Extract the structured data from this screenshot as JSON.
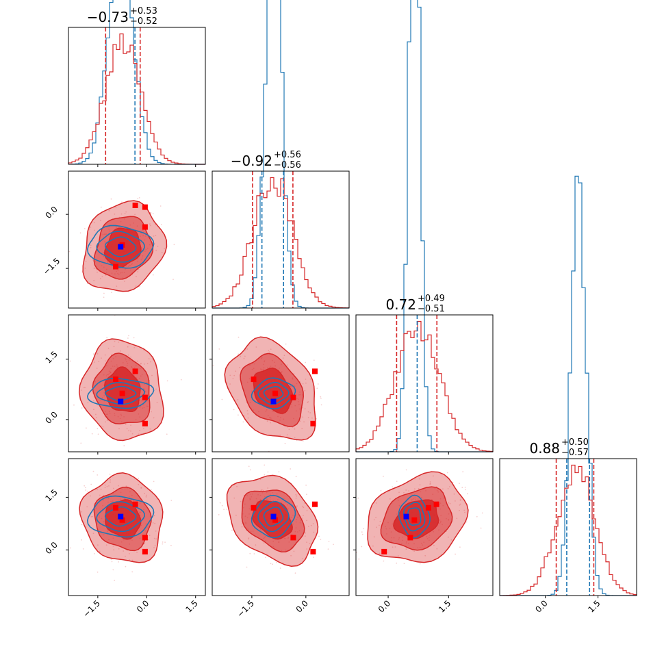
{
  "chart_data": {
    "type": "corner",
    "params": [
      {
        "title_value": "−0.73",
        "title_plus": "+0.53",
        "title_minus": "−0.52",
        "quantiles_red": [
          -1.26,
          -0.2
        ],
        "quantiles_blue": [
          -0.36
        ]
      },
      {
        "title_value": "−0.92",
        "title_plus": "+0.56",
        "title_minus": "−0.56",
        "quantiles_red": [
          -1.48,
          -0.36
        ],
        "quantiles_blue": [
          -1.22,
          -0.62
        ]
      },
      {
        "title_value": "0.72",
        "title_plus": "+0.49",
        "title_minus": "−0.51",
        "quantiles_red": [
          0.21,
          1.21
        ],
        "quantiles_blue": [
          0.72
        ]
      },
      {
        "title_value": "0.88",
        "title_plus": "+0.50",
        "title_minus": "−0.57",
        "quantiles_red": [
          0.31,
          1.38
        ],
        "quantiles_blue": [
          0.61,
          1.26
        ]
      }
    ],
    "axis_ranges": [
      [
        -2.4,
        1.8
      ],
      [
        -2.6,
        1.2
      ],
      [
        -0.8,
        2.6
      ],
      [
        -1.3,
        2.6
      ]
    ],
    "tick_values": [
      [
        "−1.5",
        "0.0",
        "1.5"
      ],
      [
        "−1.5",
        "0.0"
      ],
      [
        "0.0",
        "1.5"
      ],
      [
        "0.0",
        "1.5"
      ]
    ],
    "tick_numbers": [
      [
        -1.5,
        0.0,
        1.5
      ],
      [
        -1.5,
        0.0
      ],
      [
        0.0,
        1.5
      ],
      [
        0.0,
        1.5
      ]
    ],
    "series_colors": {
      "red": "#d62728",
      "blue": "#1f77b4"
    },
    "markers": {
      "blue": [
        -0.8,
        -0.9,
        0.45,
        0.95
      ],
      "red": [
        [
          -0.35,
          0.25,
          1.2,
          1.3
        ],
        [
          -0.05,
          -0.35,
          0.55,
          0.35
        ],
        [
          -0.95,
          -1.45,
          1.0,
          1.2
        ],
        [
          -0.75,
          -0.85,
          0.65,
          0.85
        ],
        [
          -0.05,
          0.2,
          -0.1,
          -0.05
        ]
      ]
    },
    "grid": false,
    "legend": "none"
  }
}
